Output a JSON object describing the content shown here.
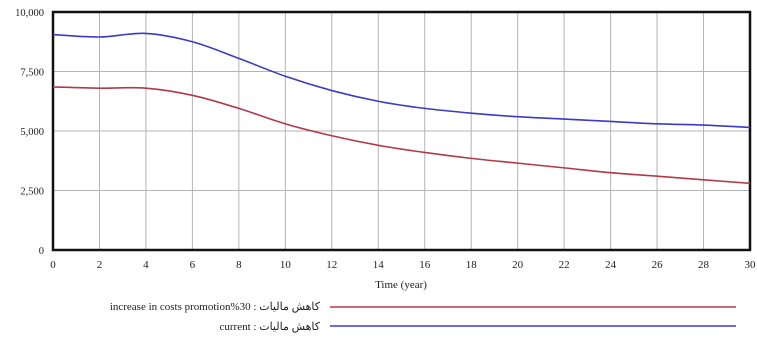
{
  "chart_data": {
    "type": "line",
    "title": "",
    "xlabel": "Time (year)",
    "ylabel": "",
    "xlim": [
      0,
      30
    ],
    "ylim": [
      0,
      10000
    ],
    "grid": true,
    "x_ticks": [
      "0",
      "2",
      "4",
      "6",
      "8",
      "10",
      "12",
      "14",
      "16",
      "18",
      "20",
      "22",
      "24",
      "26",
      "28",
      "30"
    ],
    "y_ticks": [
      "0",
      "2,500",
      "5,000",
      "7,500",
      "10,000"
    ],
    "y_tick_values": [
      0,
      2500,
      5000,
      7500,
      10000
    ],
    "x": [
      0,
      2,
      4,
      6,
      8,
      10,
      12,
      14,
      16,
      18,
      20,
      22,
      24,
      26,
      28,
      30
    ],
    "legend_placement": "bottom",
    "series": [
      {
        "name": "کاهش مالیات : current",
        "color": "#3b3bc4",
        "values": [
          9050,
          8950,
          9100,
          8750,
          8050,
          7300,
          6700,
          6250,
          5950,
          5750,
          5600,
          5500,
          5400,
          5300,
          5250,
          5150
        ]
      },
      {
        "name": "کاهش مالیات : 30%increase in costs promotion",
        "color": "#b03a4a",
        "values": [
          6850,
          6800,
          6800,
          6500,
          5950,
          5300,
          4800,
          4400,
          4100,
          3850,
          3650,
          3450,
          3250,
          3100,
          2950,
          2800
        ]
      }
    ]
  }
}
